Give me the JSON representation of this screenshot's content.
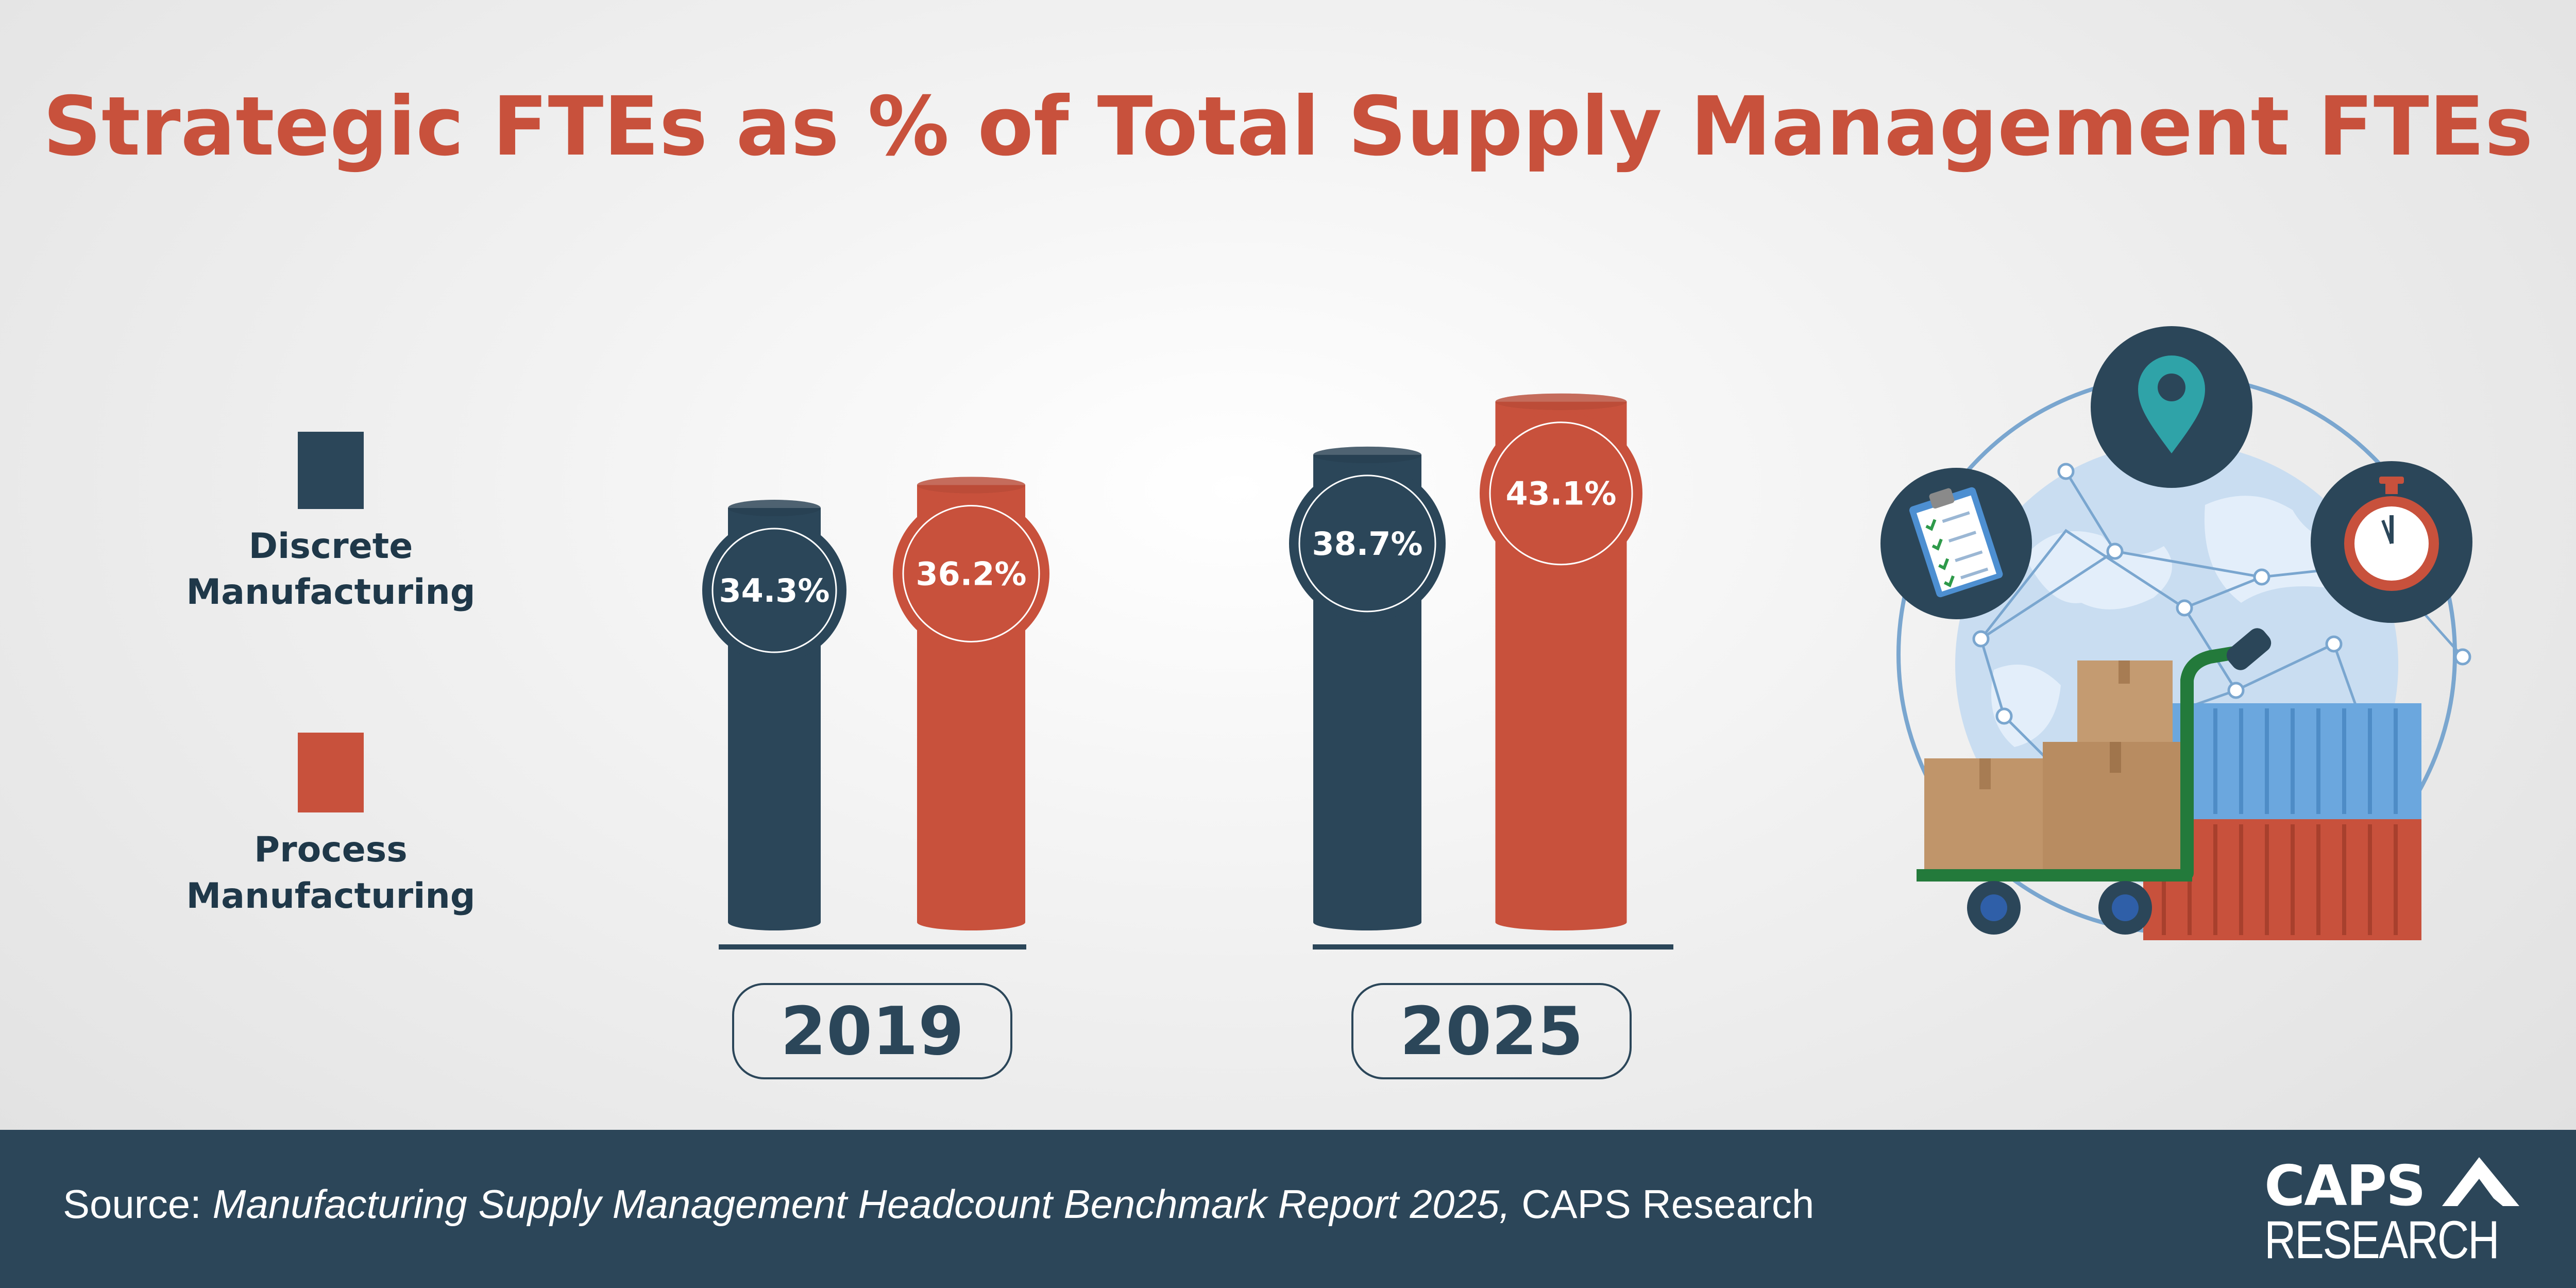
{
  "title": "Strategic FTEs as % of Total Supply Management FTEs",
  "legend": {
    "discrete_line1": "Discrete",
    "discrete_line2": "Manufacturing",
    "process_line1": "Process",
    "process_line2": "Manufacturing"
  },
  "colors": {
    "discrete": "#2b4659",
    "process": "#c8513c",
    "title": "#c8513c",
    "footer": "#2c4659"
  },
  "chart_data": {
    "type": "bar",
    "title": "Strategic FTEs as % of Total Supply Management FTEs",
    "categories": [
      "2019",
      "2025"
    ],
    "series": [
      {
        "name": "Discrete Manufacturing",
        "values": [
          34.3,
          38.7
        ],
        "labels": [
          "34.3%",
          "38.7%"
        ]
      },
      {
        "name": "Process Manufacturing",
        "values": [
          36.2,
          43.1
        ],
        "labels": [
          "36.2%",
          "43.1%"
        ]
      }
    ],
    "unit": "%",
    "legend_position": "left",
    "grid": false
  },
  "icons": [
    "globe-network",
    "map-pin-icon",
    "clipboard-checklist-icon",
    "stopwatch-icon",
    "shipping-containers",
    "hand-truck-with-boxes"
  ],
  "footer": {
    "source_prefix": "Source: ",
    "source_title": "Manufacturing Supply Management Headcount Benchmark Report 2025,",
    "source_suffix": " CAPS Research"
  },
  "logo": {
    "line1": "CAPS",
    "line2": "RESEARCH"
  }
}
